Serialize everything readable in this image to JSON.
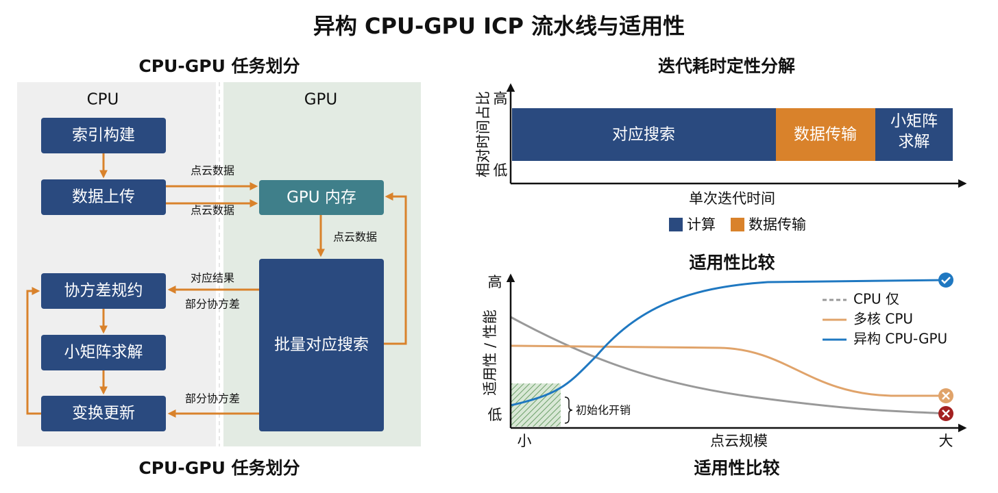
{
  "title": "异构 CPU-GPU ICP 流水线与适用性",
  "partition": {
    "title": "CPU-GPU 任务划分",
    "caption": "CPU-GPU 任务划分",
    "cpu_label": "CPU",
    "gpu_label": "GPU",
    "cpu_nodes": [
      "索引构建",
      "数据上传",
      "协方差规约",
      "小矩阵求解",
      "变换更新"
    ],
    "gpu_nodes": [
      "GPU 内存",
      "批量对应搜索"
    ],
    "edge_labels": [
      "点云数据",
      "点云数据",
      "点云数据",
      "对应结果",
      "部分协方差",
      "部分协方差"
    ]
  },
  "breakdown": {
    "title": "迭代耗时定性分解",
    "y_label": "相对时间占比",
    "y_high": "高",
    "y_low": "低",
    "x_label": "单次迭代时间",
    "segments": [
      "对应搜索",
      "数据传输",
      "小矩阵求解"
    ],
    "legend": [
      "计算",
      "数据传输"
    ]
  },
  "suitability": {
    "title": "适用性比较",
    "caption": "适用性比较",
    "y_label": "适用性 / 性能",
    "y_high": "高",
    "y_low": "低",
    "x_label": "点云规模",
    "x_small": "小",
    "x_large": "大",
    "legend": [
      "CPU 仅",
      "多核 CPU",
      "异构 CPU-GPU"
    ],
    "annotation": "初始化开销"
  }
}
